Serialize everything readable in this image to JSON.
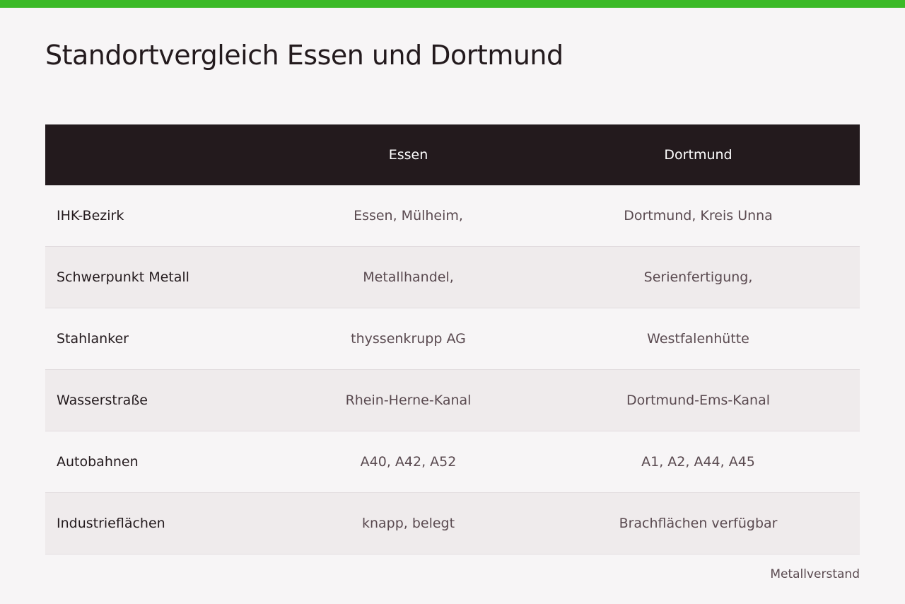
{
  "header": {
    "title": "Standortvergleich Essen und Dortmund"
  },
  "table": {
    "columns": [
      "Essen",
      "Dortmund"
    ],
    "rows": [
      [
        "IHK-Bezirk",
        "Essen, Mülheim,",
        "Dortmund, Kreis Unna"
      ],
      [
        "Schwerpunkt Metall",
        "Metallhandel,",
        "Serienfertigung,"
      ],
      [
        "Stahlanker",
        "thyssenkrupp AG",
        "Westfalenhütte"
      ],
      [
        "Wasserstraße",
        "Rhein-Herne-Kanal",
        "Dortmund-Ems-Kanal"
      ],
      [
        "Autobahnen",
        "A40, A42, A52",
        "A1, A2, A44, A45"
      ],
      [
        "Industrieflächen",
        "knapp, belegt",
        "Brachflächen verfügbar"
      ]
    ]
  },
  "footer": {
    "source": "Metallverstand"
  }
}
